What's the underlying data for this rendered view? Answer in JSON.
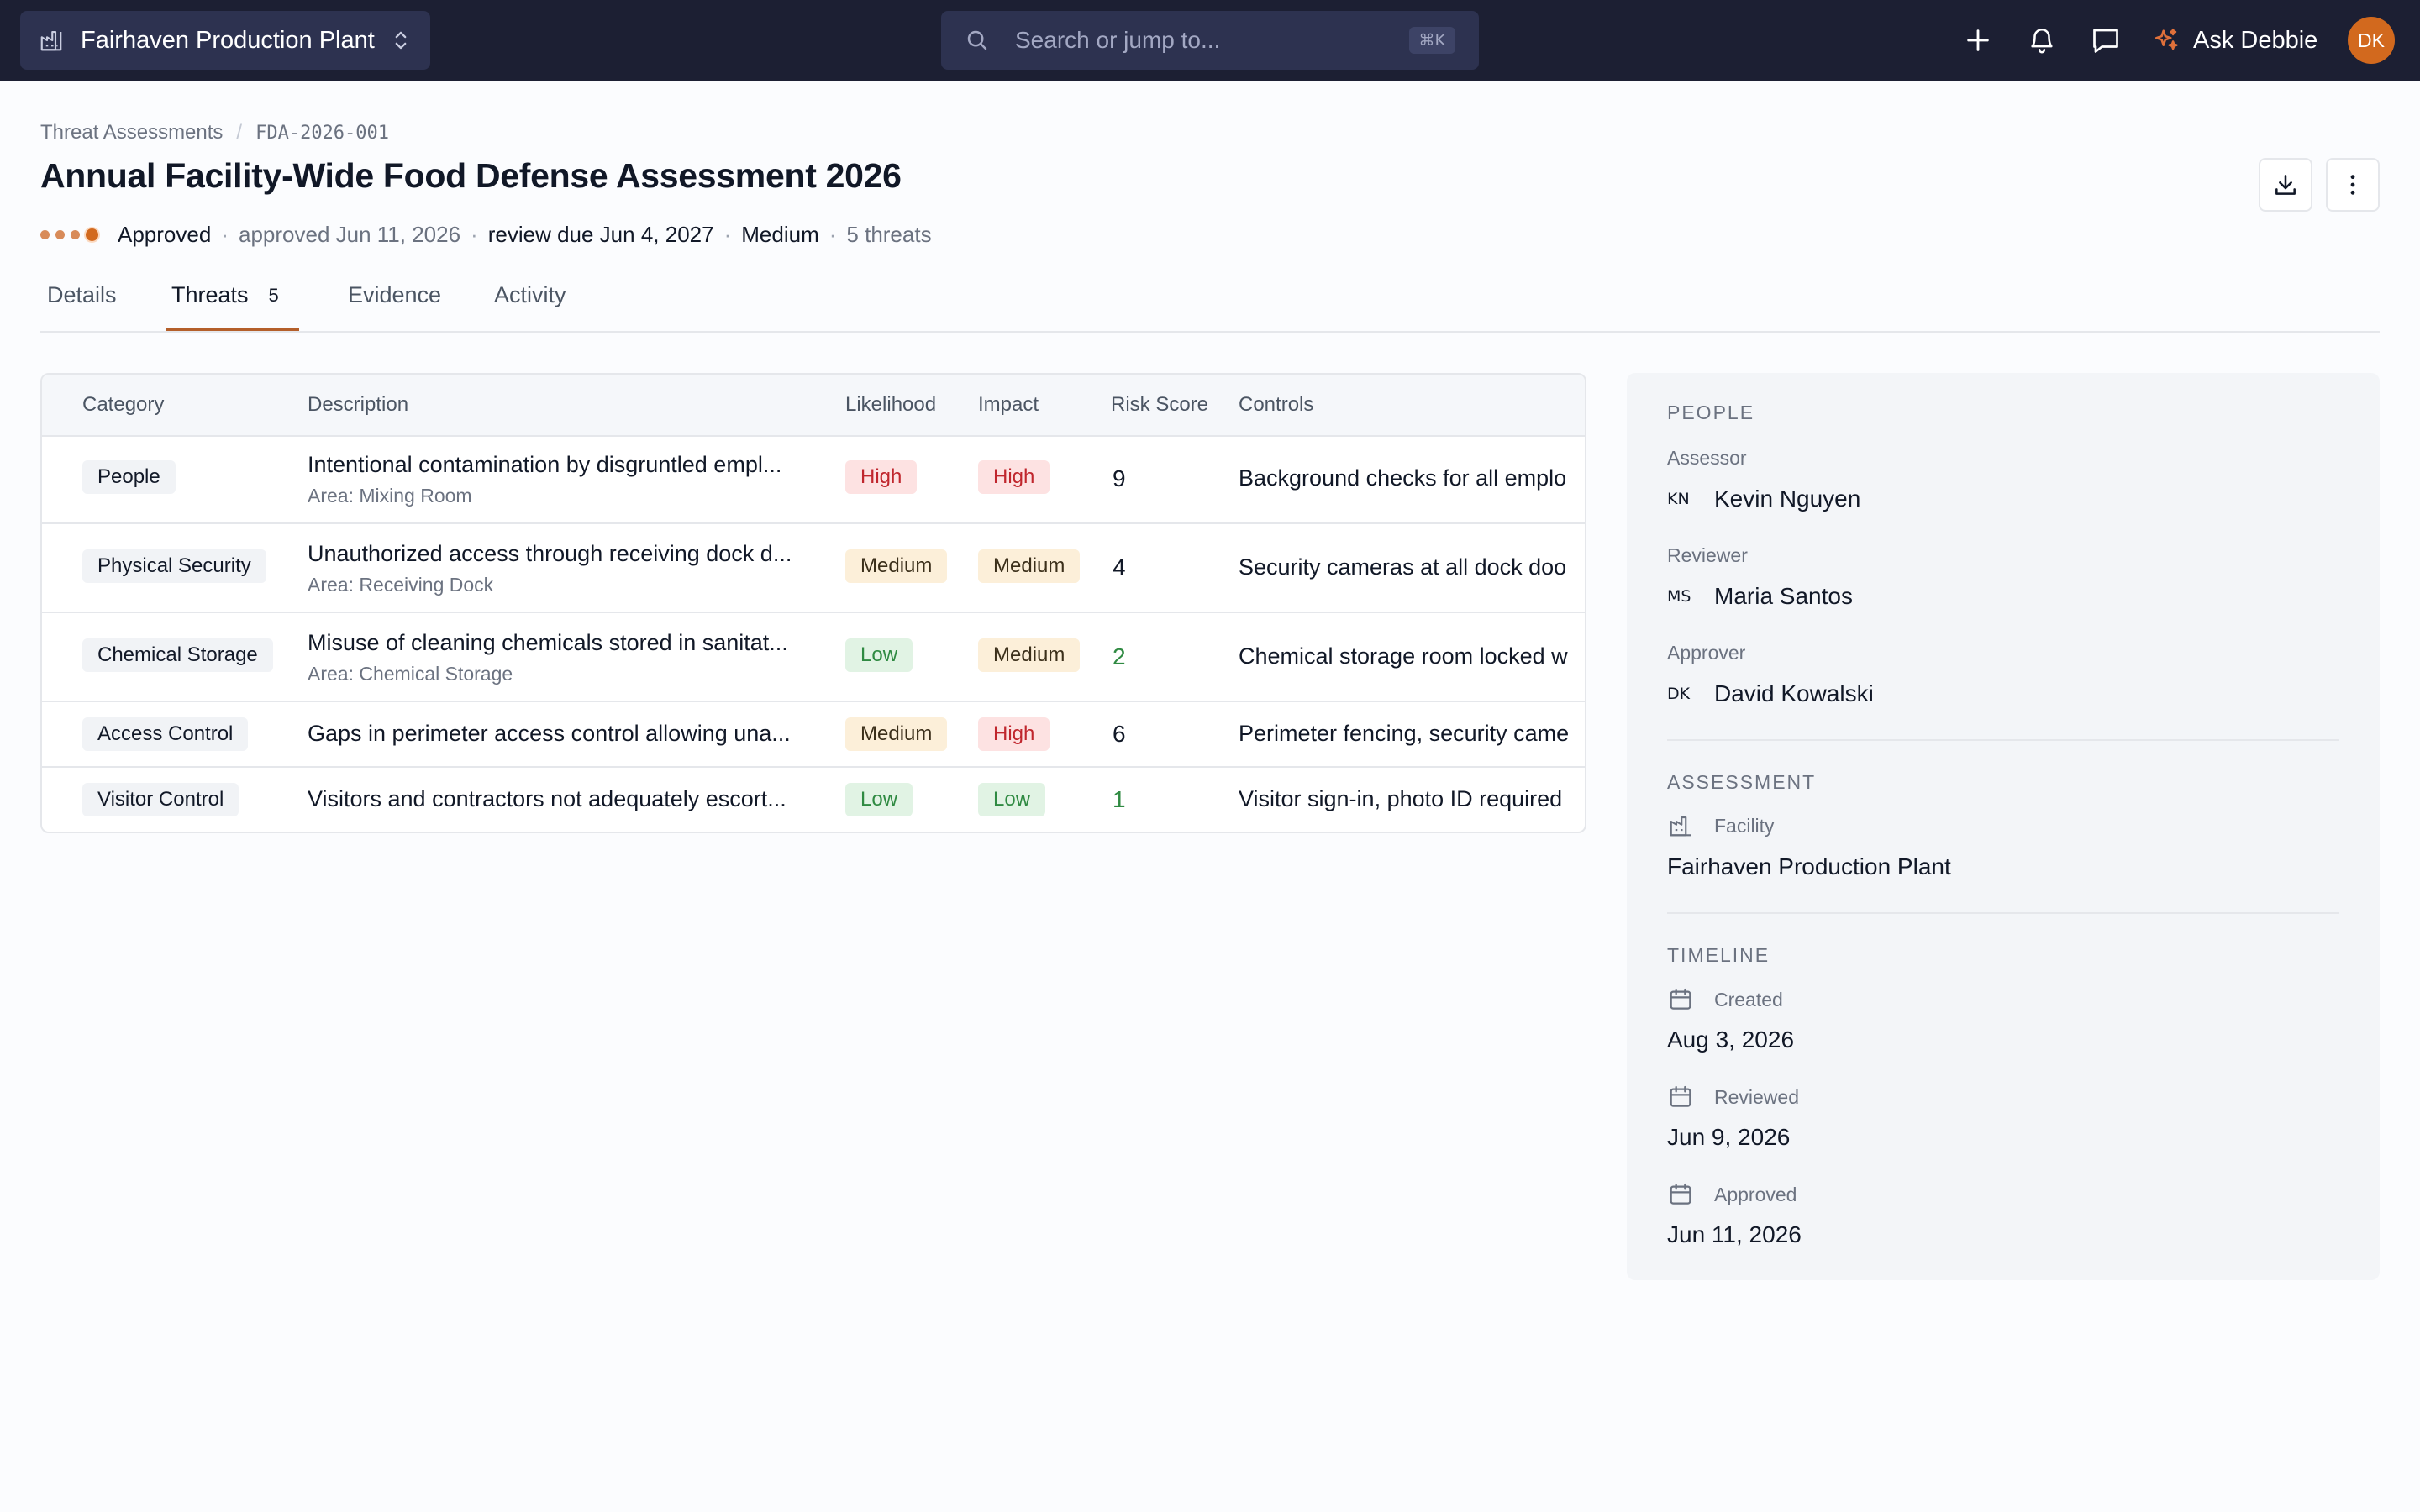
{
  "topbar": {
    "facility": "Fairhaven Production Plant",
    "search_placeholder": "Search or jump to...",
    "search_shortcut": "⌘K",
    "ask_label": "Ask Debbie",
    "avatar_initials": "DK"
  },
  "breadcrumb": {
    "parent": "Threat Assessments",
    "separator": "/",
    "current": "FDA-2026-001"
  },
  "header": {
    "title": "Annual Facility-Wide Food Defense Assessment 2026",
    "status": "Approved",
    "approved_text": "approved Jun 11, 2026",
    "review_due": "review due Jun 4, 2027",
    "risk_level": "Medium",
    "threat_count_text": "5 threats",
    "separator": "·"
  },
  "tabs": [
    {
      "label": "Details"
    },
    {
      "label": "Threats",
      "count": "5"
    },
    {
      "label": "Evidence"
    },
    {
      "label": "Activity"
    }
  ],
  "table": {
    "columns": [
      "Category",
      "Description",
      "Likelihood",
      "Impact",
      "Risk Score",
      "Controls"
    ],
    "rows": [
      {
        "category": "People",
        "description": "Intentional contamination by disgruntled empl...",
        "area": "Area: Mixing Room",
        "likelihood": "High",
        "impact": "High",
        "score": "9",
        "controls": "Background checks for all emplo"
      },
      {
        "category": "Physical Security",
        "description": "Unauthorized access through receiving dock d...",
        "area": "Area: Receiving Dock",
        "likelihood": "Medium",
        "impact": "Medium",
        "score": "4",
        "controls": "Security cameras at all dock doo"
      },
      {
        "category": "Chemical Storage",
        "description": "Misuse of cleaning chemicals stored in sanitat...",
        "area": "Area: Chemical Storage",
        "likelihood": "Low",
        "impact": "Medium",
        "score": "2",
        "controls": "Chemical storage room locked w"
      },
      {
        "category": "Access Control",
        "description": "Gaps in perimeter access control allowing una...",
        "area": "",
        "likelihood": "Medium",
        "impact": "High",
        "score": "6",
        "controls": "Perimeter fencing, security came"
      },
      {
        "category": "Visitor Control",
        "description": "Visitors and contractors not adequately escort...",
        "area": "",
        "likelihood": "Low",
        "impact": "Low",
        "score": "1",
        "controls": "Visitor sign-in, photo ID required"
      }
    ]
  },
  "panel": {
    "people_title": "PEOPLE",
    "assessor_label": "Assessor",
    "assessor_initials": "KN",
    "assessor_name": "Kevin Nguyen",
    "reviewer_label": "Reviewer",
    "reviewer_initials": "MS",
    "reviewer_name": "Maria Santos",
    "approver_label": "Approver",
    "approver_initials": "DK",
    "approver_name": "David Kowalski",
    "assessment_title": "ASSESSMENT",
    "facility_label": "Facility",
    "facility_value": "Fairhaven Production Plant",
    "timeline_title": "TIMELINE",
    "created_label": "Created",
    "created_value": "Aug 3, 2026",
    "reviewed_label": "Reviewed",
    "reviewed_value": "Jun 9, 2026",
    "approved_label": "Approved",
    "approved_value": "Jun 11, 2026"
  },
  "icons": {
    "facility": "factory-icon",
    "switcher": "chevron-up-down-icon",
    "search": "search-icon",
    "add": "plus-icon",
    "notifications": "bell-icon",
    "messages": "chat-icon",
    "ai": "sparkle-icon",
    "download": "download-icon",
    "more": "more-vertical-icon",
    "building": "building-icon",
    "calendar": "calendar-icon"
  },
  "colors": {
    "topbar": "#1c1f33",
    "accent": "#d2691e",
    "tab_underline": "#b45f2a",
    "high": "#c0262d",
    "medium_bg": "#fcefd9",
    "low": "#2f8a42"
  }
}
